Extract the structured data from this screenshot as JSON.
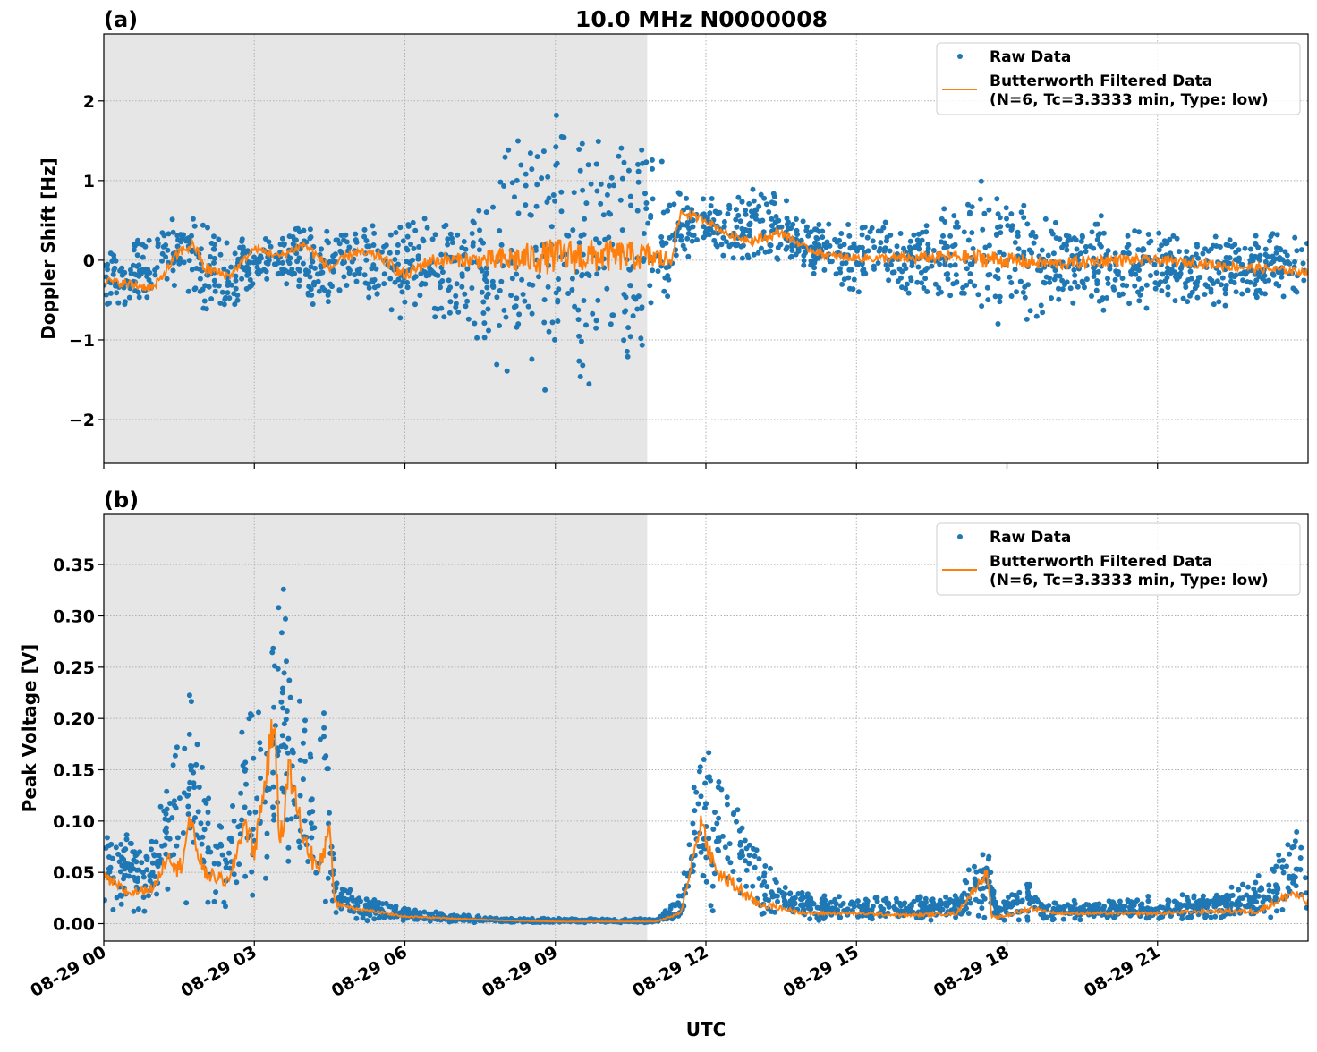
{
  "title": "10.0 MHz N0000008",
  "xlabel": "UTC",
  "x_tick_labels": [
    "08-29 00",
    "08-29 03",
    "08-29 06",
    "08-29 09",
    "08-29 12",
    "08-29 15",
    "08-29 18",
    "08-29 21"
  ],
  "x_ticks_hours": [
    0,
    3,
    6,
    9,
    12,
    15,
    18,
    21
  ],
  "xlim_hours": [
    0,
    24
  ],
  "night_shade_hours": [
    0,
    10.83
  ],
  "colors": {
    "raw": "#1f77b4",
    "filtered": "#ff7f0e",
    "shade": "#e6e6e6",
    "grid": "#b0b0b0"
  },
  "legend": {
    "raw": "Raw Data",
    "filtered_line1": "Butterworth Filtered Data",
    "filtered_line2": "(N=6, Tc=3.3333 min, Type: low)",
    "placement": "upper-right"
  },
  "chart_data": [
    {
      "type": "scatter+line",
      "panel_label": "(a)",
      "ylabel": "Doppler Shift [Hz]",
      "ylim": [
        -2.55,
        2.84
      ],
      "y_ticks": [
        -2,
        -1,
        0,
        1,
        2
      ],
      "y_tick_labels": [
        "−2",
        "−1",
        "0",
        "1",
        "2"
      ],
      "grid": true,
      "series": [
        {
          "name": "Raw Data",
          "kind": "scatter",
          "envelope_hours_lo_hi": [
            [
              0,
              -0.6,
              0.2
            ],
            [
              1,
              -0.6,
              0.4
            ],
            [
              1.5,
              -0.4,
              0.7
            ],
            [
              2,
              -0.8,
              0.5
            ],
            [
              2.5,
              -0.6,
              0.3
            ],
            [
              3,
              -0.4,
              0.3
            ],
            [
              3.5,
              -0.3,
              0.3
            ],
            [
              4,
              -0.6,
              0.5
            ],
            [
              5,
              -0.5,
              0.5
            ],
            [
              6,
              -0.8,
              0.5
            ],
            [
              7,
              -0.9,
              0.6
            ],
            [
              7.5,
              -1.0,
              0.8
            ],
            [
              8,
              -1.6,
              1.4
            ],
            [
              8.5,
              -1.7,
              1.6
            ],
            [
              9,
              -1.8,
              2.0
            ],
            [
              9.5,
              -1.6,
              2.2
            ],
            [
              10,
              -1.5,
              1.9
            ],
            [
              10.5,
              -1.6,
              1.6
            ],
            [
              11,
              -1.2,
              1.5
            ],
            [
              11.5,
              0.0,
              0.9
            ],
            [
              12,
              0.1,
              0.8
            ],
            [
              12.5,
              0.0,
              0.7
            ],
            [
              13,
              0.0,
              1.0
            ],
            [
              13.5,
              -0.1,
              0.9
            ],
            [
              14,
              -0.2,
              0.5
            ],
            [
              15,
              -0.4,
              0.5
            ],
            [
              16,
              -0.5,
              0.6
            ],
            [
              17,
              -0.6,
              0.7
            ],
            [
              17.5,
              -0.9,
              1.1
            ],
            [
              18,
              -0.8,
              0.9
            ],
            [
              19,
              -0.7,
              0.6
            ],
            [
              20,
              -0.7,
              0.6
            ],
            [
              21,
              -0.6,
              0.4
            ],
            [
              22,
              -0.6,
              0.4
            ],
            [
              23,
              -0.6,
              0.4
            ],
            [
              24,
              -0.4,
              0.3
            ]
          ]
        },
        {
          "name": "Butterworth Filtered Data",
          "kind": "line",
          "points_hours": [
            [
              0,
              -0.25
            ],
            [
              0.5,
              -0.3
            ],
            [
              1,
              -0.35
            ],
            [
              1.5,
              0.1
            ],
            [
              1.8,
              0.2
            ],
            [
              2,
              -0.1
            ],
            [
              2.5,
              -0.2
            ],
            [
              3,
              0.15
            ],
            [
              3.5,
              0.05
            ],
            [
              4,
              0.2
            ],
            [
              4.5,
              -0.1
            ],
            [
              5,
              0.1
            ],
            [
              5.5,
              0.05
            ],
            [
              6,
              -0.2
            ],
            [
              6.5,
              0
            ],
            [
              7,
              0
            ],
            [
              8,
              0
            ],
            [
              9,
              0.05
            ],
            [
              10,
              0.05
            ],
            [
              10.8,
              0.05
            ],
            [
              11.3,
              0
            ],
            [
              11.5,
              0.6
            ],
            [
              12,
              0.5
            ],
            [
              12.5,
              0.3
            ],
            [
              13,
              0.25
            ],
            [
              13.5,
              0.35
            ],
            [
              14,
              0.15
            ],
            [
              14.5,
              0.05
            ],
            [
              15,
              0.03
            ],
            [
              16,
              0.02
            ],
            [
              17,
              0.05
            ],
            [
              18,
              0
            ],
            [
              19,
              -0.05
            ],
            [
              20,
              0
            ],
            [
              21,
              0
            ],
            [
              22,
              -0.05
            ],
            [
              23,
              -0.1
            ],
            [
              24,
              -0.15
            ]
          ]
        }
      ]
    },
    {
      "type": "scatter+line",
      "panel_label": "(b)",
      "ylabel": "Peak Voltage [V]",
      "ylim": [
        -0.017,
        0.399
      ],
      "y_ticks": [
        0,
        0.05,
        0.1,
        0.15,
        0.2,
        0.25,
        0.3,
        0.35
      ],
      "y_tick_labels": [
        "0.00",
        "0.05",
        "0.10",
        "0.15",
        "0.20",
        "0.25",
        "0.30",
        "0.35"
      ],
      "grid": true,
      "series": [
        {
          "name": "Raw Data",
          "kind": "scatter",
          "envelope_hours_lo_hi": [
            [
              0,
              0.01,
              0.1
            ],
            [
              1,
              0.01,
              0.08
            ],
            [
              1.3,
              0.02,
              0.17
            ],
            [
              1.7,
              0.02,
              0.25
            ],
            [
              2,
              0.01,
              0.15
            ],
            [
              2.5,
              0.01,
              0.1
            ],
            [
              2.8,
              0.02,
              0.25
            ],
            [
              3,
              0.02,
              0.2
            ],
            [
              3.4,
              0.03,
              0.37
            ],
            [
              3.7,
              0.03,
              0.33
            ],
            [
              4,
              0.02,
              0.2
            ],
            [
              4.4,
              0.02,
              0.26
            ],
            [
              4.6,
              0.005,
              0.05
            ],
            [
              5,
              0.003,
              0.03
            ],
            [
              6,
              0.002,
              0.015
            ],
            [
              7,
              0.001,
              0.01
            ],
            [
              8,
              0.001,
              0.005
            ],
            [
              11,
              0.001,
              0.005
            ],
            [
              11.5,
              0.003,
              0.03
            ],
            [
              11.9,
              0.01,
              0.19
            ],
            [
              12.3,
              0.01,
              0.15
            ],
            [
              12.7,
              0.01,
              0.13
            ],
            [
              13,
              0.005,
              0.08
            ],
            [
              13.5,
              0.003,
              0.04
            ],
            [
              14,
              0.003,
              0.03
            ],
            [
              15,
              0.003,
              0.025
            ],
            [
              17,
              0.003,
              0.03
            ],
            [
              17.6,
              0.003,
              0.09
            ],
            [
              17.8,
              0.003,
              0.02
            ],
            [
              18.5,
              0.003,
              0.05
            ],
            [
              18.7,
              0.003,
              0.02
            ],
            [
              20,
              0.003,
              0.025
            ],
            [
              22,
              0.003,
              0.03
            ],
            [
              23.2,
              0.005,
              0.05
            ],
            [
              23.8,
              0.01,
              0.1
            ],
            [
              24,
              0.01,
              0.08
            ]
          ]
        },
        {
          "name": "Butterworth Filtered Data",
          "kind": "line",
          "points_hours": [
            [
              0,
              0.045
            ],
            [
              0.5,
              0.03
            ],
            [
              1,
              0.035
            ],
            [
              1.3,
              0.07
            ],
            [
              1.5,
              0.05
            ],
            [
              1.7,
              0.1
            ],
            [
              2,
              0.05
            ],
            [
              2.5,
              0.04
            ],
            [
              2.8,
              0.1
            ],
            [
              3,
              0.07
            ],
            [
              3.4,
              0.2
            ],
            [
              3.5,
              0.08
            ],
            [
              3.7,
              0.15
            ],
            [
              4,
              0.08
            ],
            [
              4.3,
              0.05
            ],
            [
              4.5,
              0.1
            ],
            [
              4.6,
              0.02
            ],
            [
              5,
              0.015
            ],
            [
              6,
              0.007
            ],
            [
              7,
              0.005
            ],
            [
              8,
              0.003
            ],
            [
              9,
              0.002
            ],
            [
              10,
              0.002
            ],
            [
              11,
              0.002
            ],
            [
              11.5,
              0.01
            ],
            [
              11.9,
              0.1
            ],
            [
              12.2,
              0.05
            ],
            [
              12.5,
              0.04
            ],
            [
              13,
              0.02
            ],
            [
              14,
              0.01
            ],
            [
              15,
              0.01
            ],
            [
              16,
              0.008
            ],
            [
              17,
              0.01
            ],
            [
              17.6,
              0.05
            ],
            [
              17.7,
              0.005
            ],
            [
              18,
              0.008
            ],
            [
              18.5,
              0.015
            ],
            [
              19,
              0.01
            ],
            [
              20,
              0.01
            ],
            [
              21,
              0.01
            ],
            [
              22,
              0.012
            ],
            [
              23,
              0.012
            ],
            [
              23.7,
              0.03
            ],
            [
              24,
              0.02
            ]
          ]
        }
      ]
    }
  ]
}
